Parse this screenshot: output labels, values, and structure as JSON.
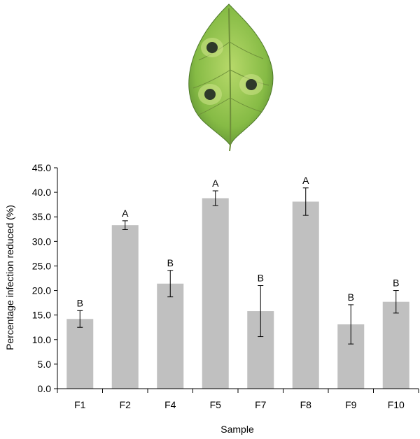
{
  "chart_data": {
    "type": "bar",
    "categories": [
      "F1",
      "F2",
      "F4",
      "F5",
      "F7",
      "F8",
      "F9",
      "F10"
    ],
    "values": [
      14.2,
      33.3,
      21.4,
      38.8,
      15.8,
      38.1,
      13.1,
      17.7
    ],
    "errors": [
      1.7,
      0.9,
      2.7,
      1.5,
      5.2,
      2.8,
      4.0,
      2.3
    ],
    "significance_labels": [
      "B",
      "A",
      "B",
      "A",
      "B",
      "A",
      "B",
      "B"
    ],
    "xlabel": "Sample",
    "ylabel": "Percentage infection reduced (%)",
    "ylim": [
      0,
      45
    ],
    "yticks": [
      "0.0",
      "5.0",
      "10.0",
      "15.0",
      "20.0",
      "25.0",
      "30.0",
      "35.0",
      "40.0",
      "45.0"
    ],
    "grid": false,
    "bar_color": "#c0c0c0"
  },
  "leaf_image": {
    "leaf_color": "#8fc24a",
    "vein_color": "#6e8f3a",
    "lesion_color": "#2e3a2a",
    "halo_color": "#cfe58a"
  }
}
